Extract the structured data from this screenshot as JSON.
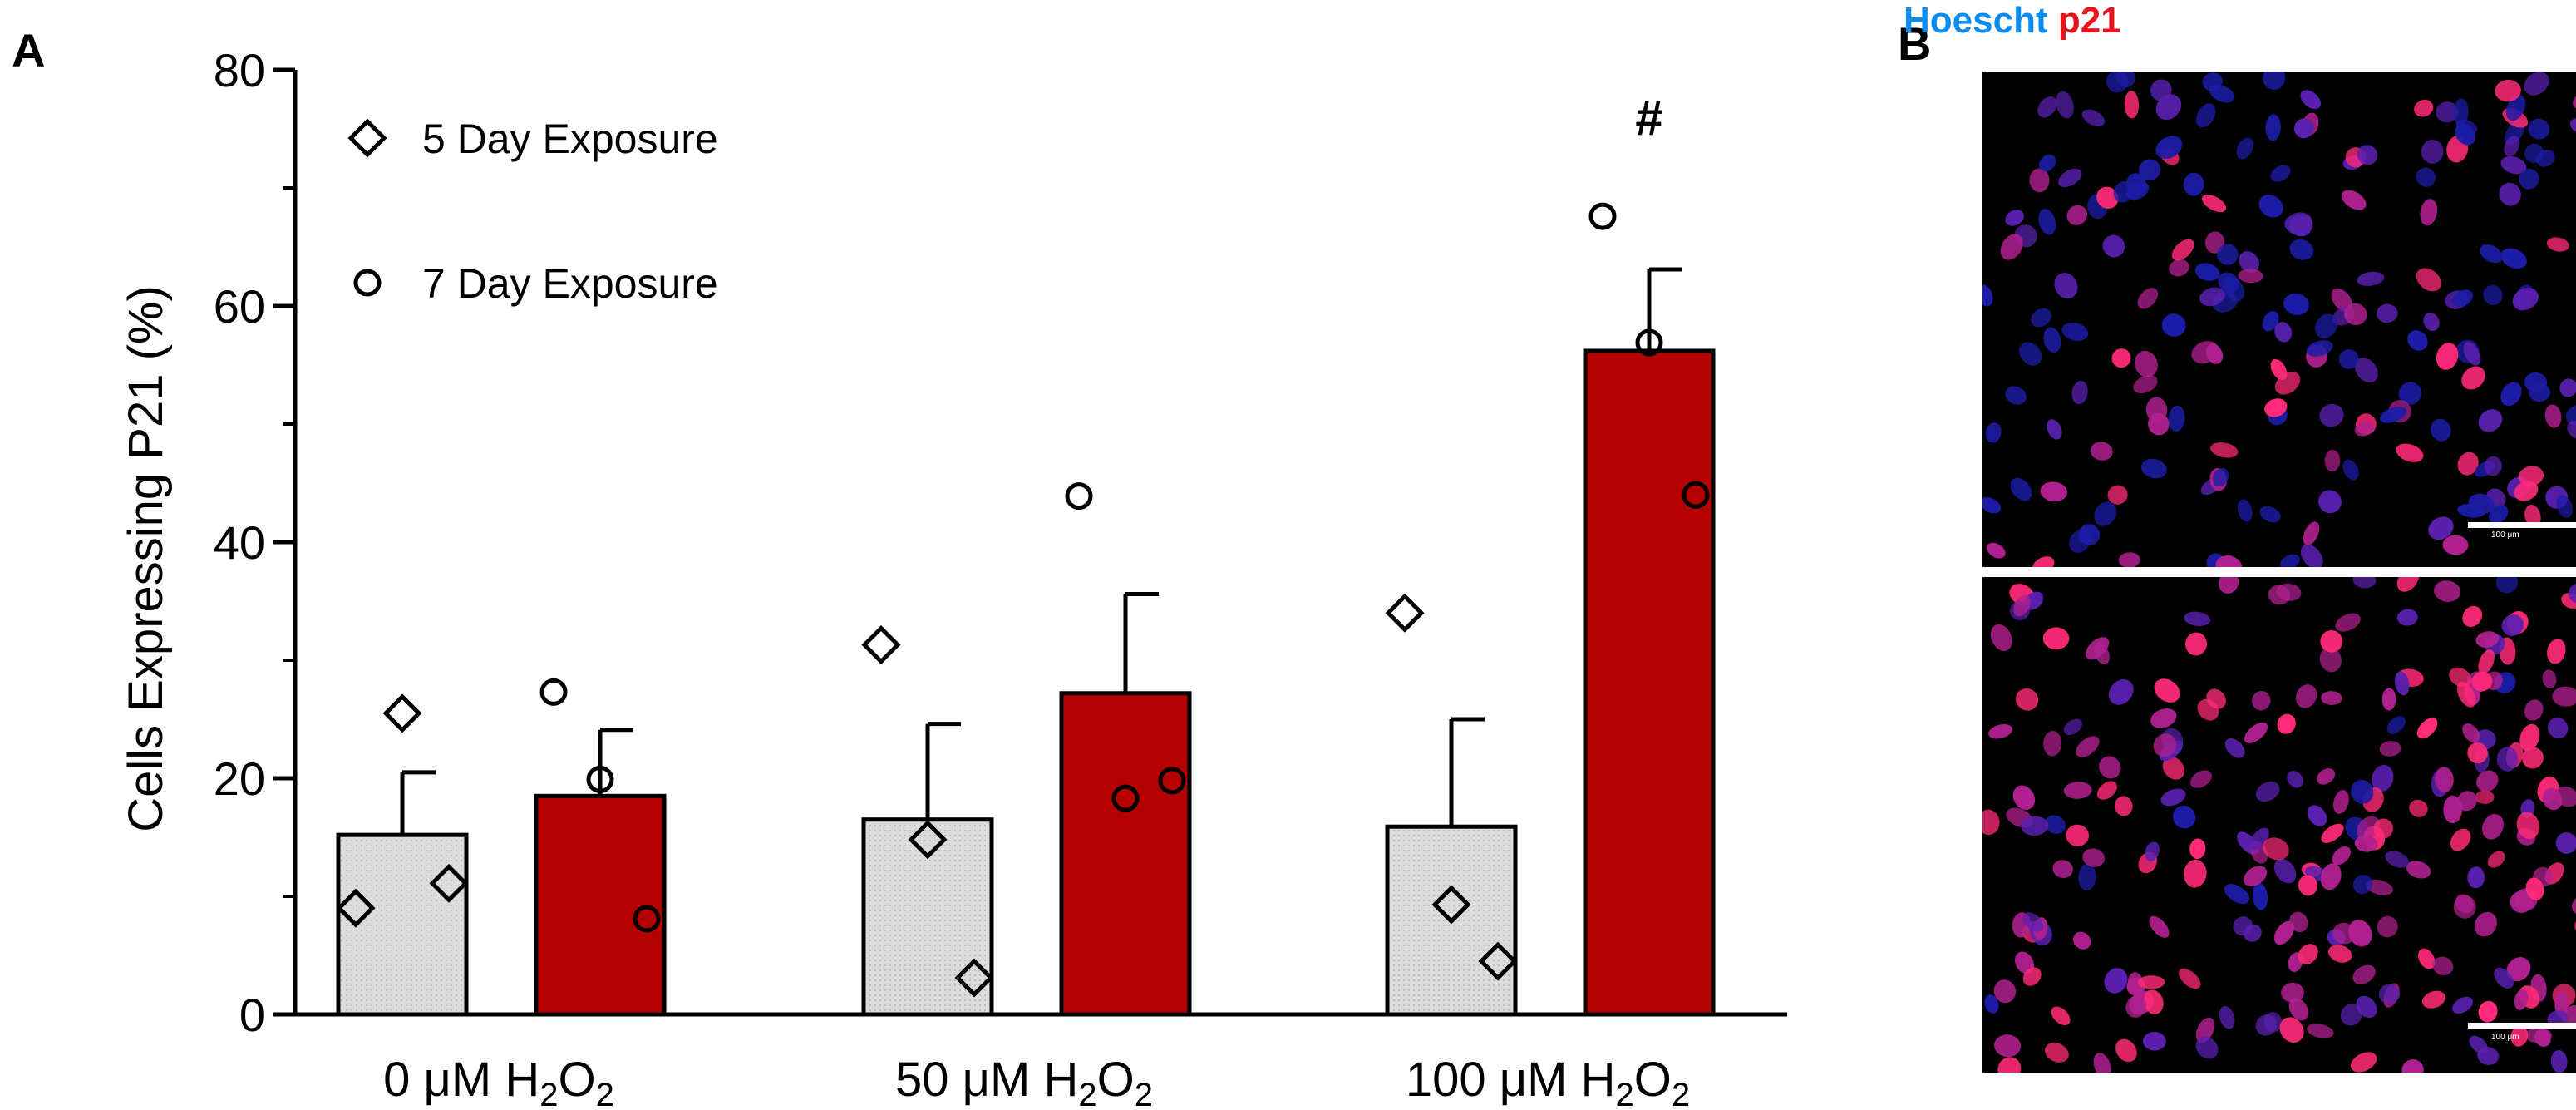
{
  "panel_labels": {
    "a": "A",
    "b": "B"
  },
  "chart_data": {
    "type": "bar",
    "ylabel": "Cells Expressing P21 (%)",
    "xlabel": "",
    "ylim": [
      0,
      80
    ],
    "yticks": [
      0,
      20,
      40,
      60,
      80
    ],
    "categories": [
      "0 μM H2O2",
      "50 μM H2O2",
      "100 μM H2O2"
    ],
    "category_labels": [
      {
        "pre": "0 ",
        "mu": "μ",
        "m": "M H",
        "sub1": "2",
        "o": "O",
        "sub2": "2"
      },
      {
        "pre": "50 ",
        "mu": "μ",
        "m": "M H",
        "sub1": "2",
        "o": "O",
        "sub2": "2"
      },
      {
        "pre": "100 ",
        "mu": "μ",
        "m": "M H",
        "sub1": "2",
        "o": "O",
        "sub2": "2"
      }
    ],
    "series": [
      {
        "name": "5 Day Exposure",
        "marker": "diamond",
        "color": "#dcdcdc",
        "values": [
          15.2,
          16.5,
          15.9
        ],
        "sem": [
          5.3,
          8.1,
          9.1
        ],
        "points": [
          [
            9,
            25.5,
            11.1
          ],
          [
            31.3,
            14.8,
            3.1
          ],
          [
            34,
            9.3,
            4.5
          ]
        ]
      },
      {
        "name": "7 Day Exposure",
        "marker": "circle",
        "color": "#b30000",
        "values": [
          18.5,
          27.2,
          56.2
        ],
        "sem": [
          5.6,
          8.4,
          6.9
        ],
        "points": [
          [
            27.3,
            19.9,
            8.1
          ],
          [
            43.9,
            18.3,
            19.8
          ],
          [
            67.6,
            56.9,
            44
          ]
        ]
      }
    ],
    "annotations": [
      {
        "category": "100 μM H2O2",
        "series": "7 Day Exposure",
        "text": "#"
      }
    ],
    "grid": false,
    "legend_position": "top-left"
  },
  "image_panel": {
    "legend_hoescht": "Hoescht",
    "legend_p21": "p21",
    "hoescht_color": "#0b8cf0",
    "p21_color": "#e8131c",
    "scale_label": "100 μm"
  }
}
